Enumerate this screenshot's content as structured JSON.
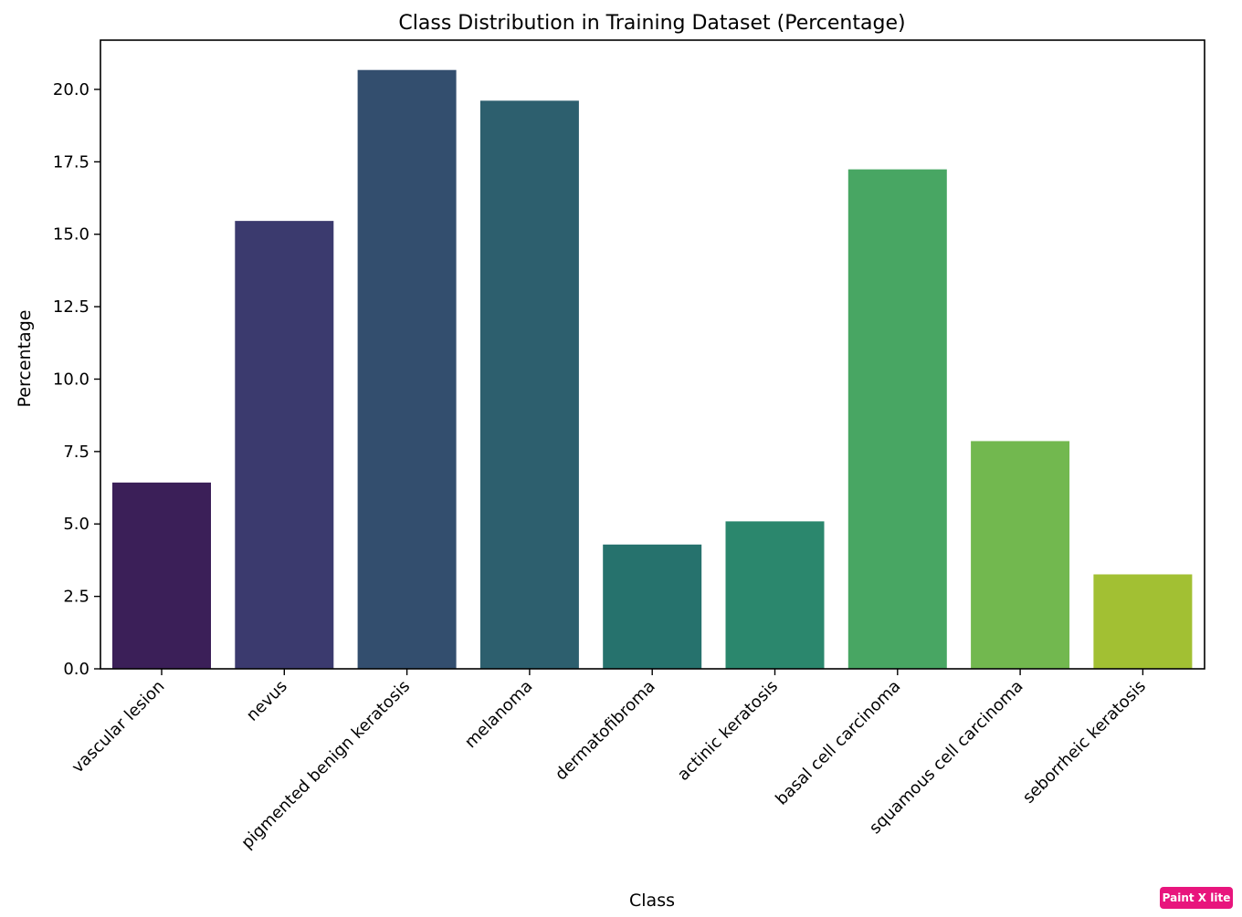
{
  "chart_data": {
    "type": "bar",
    "title": "Class Distribution in Training Dataset (Percentage)",
    "xlabel": "Class",
    "ylabel": "Percentage",
    "categories": [
      "vascular lesion",
      "nevus",
      "pigmented benign keratosis",
      "melanoma",
      "dermatofibroma",
      "actinic keratosis",
      "basal cell carcinoma",
      "squamous cell carcinoma",
      "seborrheic keratosis"
    ],
    "values": [
      6.43,
      15.46,
      20.67,
      19.61,
      4.29,
      5.09,
      17.24,
      7.86,
      3.26
    ],
    "colors": [
      "#3b1f58",
      "#3b3a6e",
      "#334e6e",
      "#2d5f6e",
      "#26726d",
      "#2b876d",
      "#48a663",
      "#72b84f",
      "#a2c033"
    ],
    "ylim": [
      0,
      21.7
    ],
    "yticks": [
      0.0,
      2.5,
      5.0,
      7.5,
      10.0,
      12.5,
      15.0,
      17.5,
      20.0
    ],
    "ytick_labels": [
      "0.0",
      "2.5",
      "5.0",
      "7.5",
      "10.0",
      "12.5",
      "15.0",
      "17.5",
      "20.0"
    ],
    "grid": false,
    "legend": "none"
  },
  "watermark": {
    "text": "Paint X lite",
    "color": "#e8157d"
  }
}
